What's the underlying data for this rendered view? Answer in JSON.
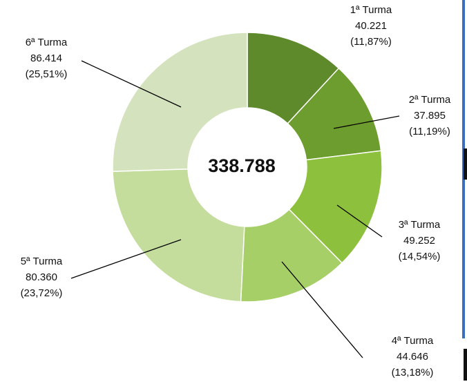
{
  "chart_data": {
    "type": "donut",
    "categories": [
      "1ª Turma",
      "2ª Turma",
      "3ª Turma",
      "4ª Turma",
      "5ª Turma",
      "6ª Turma"
    ],
    "values": [
      40221,
      37895,
      49252,
      44646,
      80360,
      86414
    ],
    "value_labels": [
      "40.221",
      "37.895",
      "49.252",
      "44.646",
      "80.360",
      "86.414"
    ],
    "percent_labels": [
      "(11,87%)",
      "(11,19%)",
      "(14,54%)",
      "(13,18%)",
      "(23,72%)",
      "(25,51%)"
    ],
    "colors": [
      "#5e8a2b",
      "#6e9d2f",
      "#8dc03c",
      "#a7cf68",
      "#c4dd9c",
      "#d4e3bd"
    ],
    "center_label": "338.788"
  }
}
